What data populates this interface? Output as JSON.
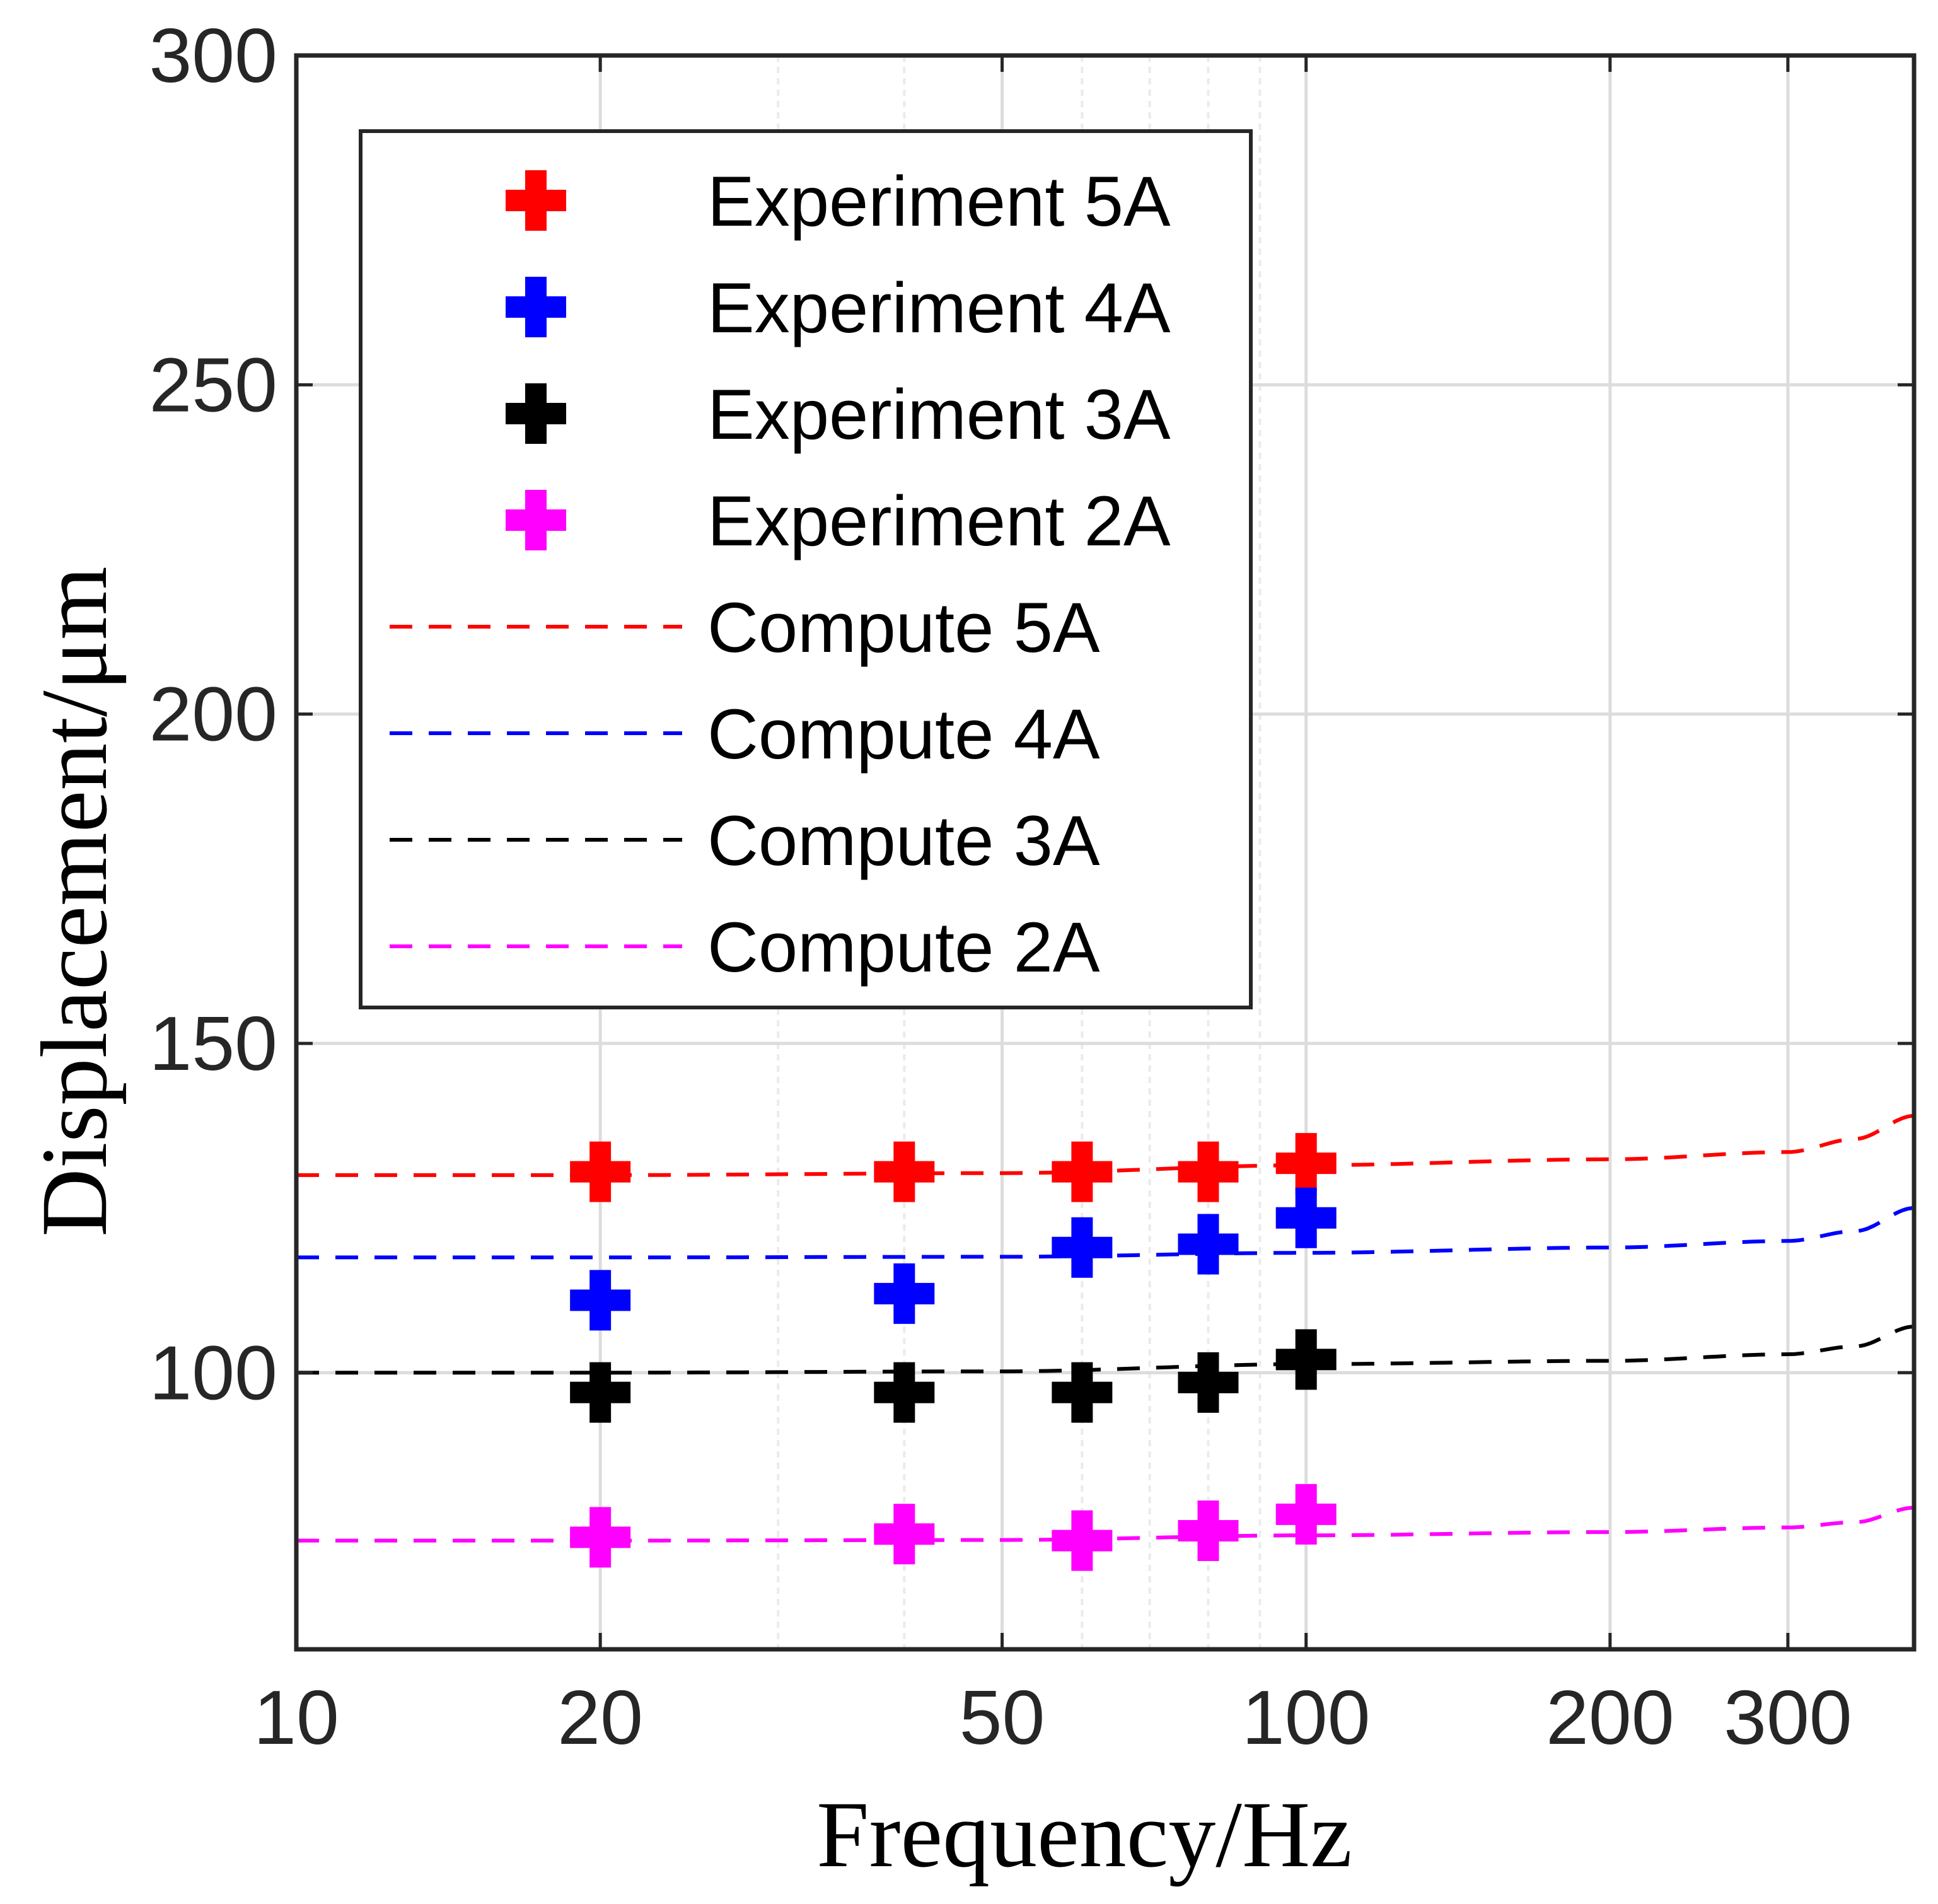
{
  "chart_data": {
    "type": "scatter",
    "xscale": "log",
    "xlim": [
      10,
      400
    ],
    "ylim": [
      58,
      300
    ],
    "xlabel": "Frequency/Hz",
    "ylabel": "Displacement/μm",
    "xticks": [
      10,
      20,
      50,
      100,
      200,
      300
    ],
    "xtick_labels": [
      "10",
      "20",
      "50",
      "100",
      "200",
      "300"
    ],
    "xminor_grid": [
      30,
      40,
      60,
      70,
      80,
      90
    ],
    "yticks": [
      100,
      150,
      200,
      250,
      300
    ],
    "ytick_labels": [
      "100",
      "150",
      "200",
      "250",
      "300"
    ],
    "grid": true,
    "legend_position": "top-left",
    "series": [
      {
        "name": "Experiment 5A",
        "kind": "marker",
        "marker": "plus",
        "color": "#ff0000",
        "x": [
          20,
          40,
          60,
          80,
          100
        ],
        "y": [
          130.5,
          130.5,
          130.5,
          130.5,
          131.8
        ]
      },
      {
        "name": "Experiment 4A",
        "kind": "marker",
        "marker": "plus",
        "color": "#0000ff",
        "x": [
          20,
          40,
          60,
          80,
          100
        ],
        "y": [
          111,
          112,
          119,
          119.5,
          123.5
        ]
      },
      {
        "name": "Experiment 3A",
        "kind": "marker",
        "marker": "plus",
        "color": "#000000",
        "x": [
          20,
          40,
          60,
          80,
          100
        ],
        "y": [
          97,
          97,
          97,
          98.5,
          102
        ]
      },
      {
        "name": "Experiment 2A",
        "kind": "marker",
        "marker": "plus",
        "color": "#ff00ff",
        "x": [
          20,
          40,
          60,
          80,
          100
        ],
        "y": [
          75,
          75.5,
          74.5,
          76,
          78.5
        ]
      },
      {
        "name": "Compute 5A",
        "kind": "line",
        "dash": true,
        "color": "#ff0000",
        "x": [
          10,
          20,
          50,
          100,
          200,
          300,
          350,
          400
        ],
        "y": [
          130,
          130,
          130.3,
          131.5,
          132.4,
          133.5,
          135.5,
          139
        ]
      },
      {
        "name": "Compute 4A",
        "kind": "line",
        "dash": true,
        "color": "#0000ff",
        "x": [
          10,
          20,
          50,
          100,
          200,
          300,
          350,
          400
        ],
        "y": [
          117.5,
          117.5,
          117.6,
          118.2,
          119,
          120,
          121.5,
          125
        ]
      },
      {
        "name": "Compute 3A",
        "kind": "line",
        "dash": true,
        "color": "#000000",
        "x": [
          10,
          20,
          50,
          100,
          200,
          300,
          350,
          400
        ],
        "y": [
          100,
          100,
          100.2,
          101.3,
          101.8,
          102.8,
          104,
          107
        ]
      },
      {
        "name": "Compute 2A",
        "kind": "line",
        "dash": true,
        "color": "#ff00ff",
        "x": [
          10,
          20,
          50,
          100,
          200,
          300,
          350,
          400
        ],
        "y": [
          74.5,
          74.5,
          74.6,
          75.3,
          75.8,
          76.5,
          77.3,
          79.5
        ]
      }
    ]
  }
}
